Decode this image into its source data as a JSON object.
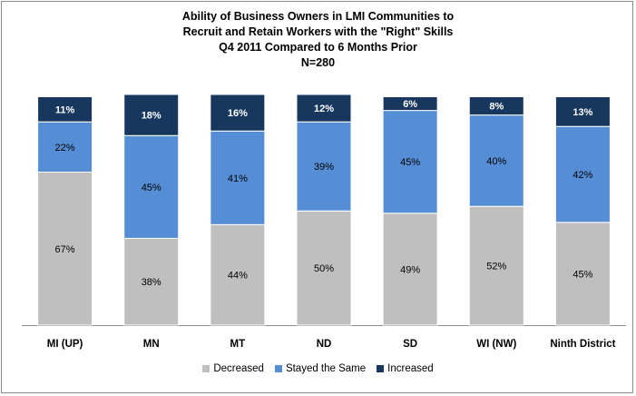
{
  "chart_data": {
    "type": "bar",
    "stacked": true,
    "title_lines": [
      "Ability of Business Owners in LMI Communities to",
      "Recruit and Retain Workers with the \"Right\" Skills",
      "Q4 2011 Compared to 6 Months Prior",
      "N=280"
    ],
    "categories": [
      "MI (UP)",
      "MN",
      "MT",
      "ND",
      "SD",
      "WI (NW)",
      "Ninth District"
    ],
    "series": [
      {
        "name": "Decreased",
        "values": [
          67,
          38,
          44,
          50,
          49,
          52,
          45
        ],
        "labels": [
          "67%",
          "38%",
          "44%",
          "50%",
          "49%",
          "52%",
          "45%"
        ],
        "color": "#bfbfbf",
        "label_color": "#000000"
      },
      {
        "name": "Stayed the Same",
        "values": [
          22,
          45,
          41,
          39,
          45,
          40,
          42
        ],
        "labels": [
          "22%",
          "45%",
          "41%",
          "39%",
          "45%",
          "40%",
          "42%"
        ],
        "color": "#558ed5",
        "label_color": "#000000"
      },
      {
        "name": "Increased",
        "values": [
          11,
          18,
          16,
          12,
          6,
          8,
          13
        ],
        "labels": [
          "11%",
          "18%",
          "16%",
          "12%",
          "6%",
          "8%",
          "13%"
        ],
        "color": "#17375e",
        "label_color": "#ffffff"
      }
    ],
    "ylim": [
      0,
      101
    ],
    "legend_position": "bottom",
    "grid": false
  }
}
